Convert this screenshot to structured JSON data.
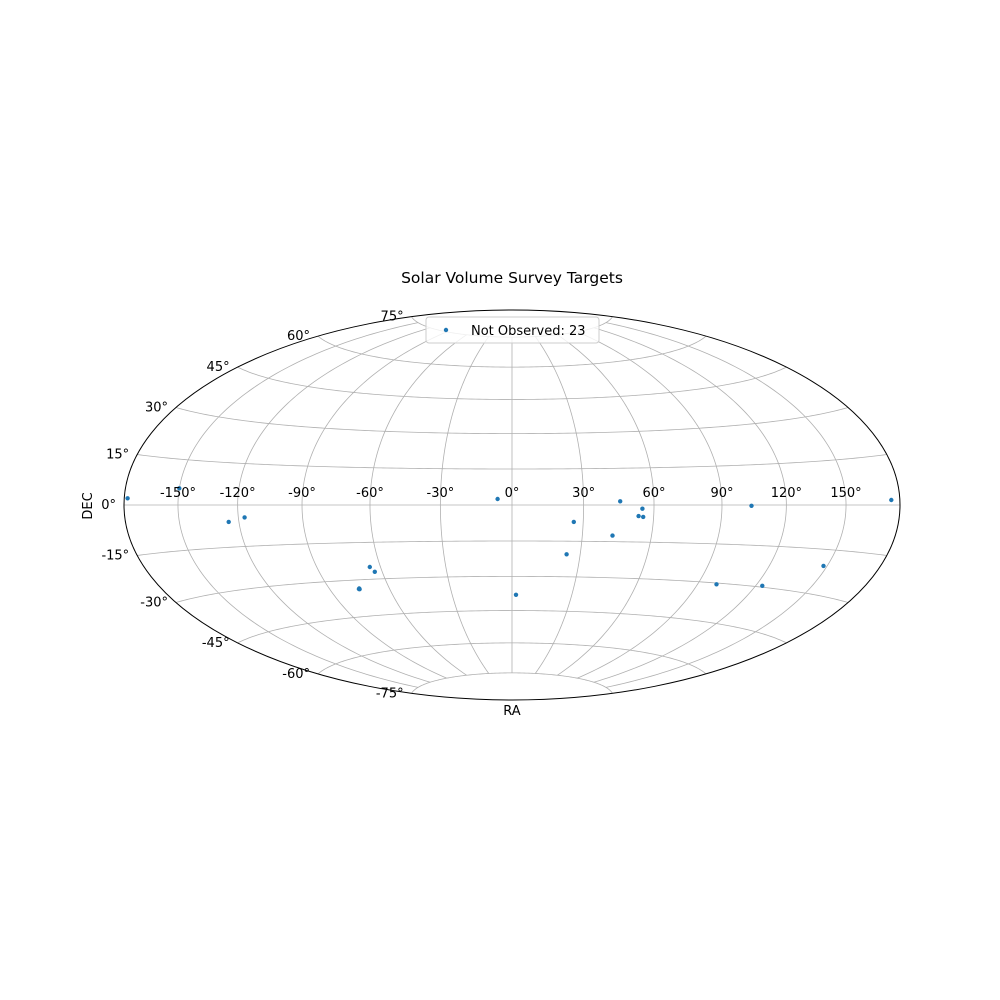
{
  "chart_data": {
    "type": "scatter",
    "projection": "hammer",
    "title": "Solar Volume Survey Targets",
    "xlabel": "RA",
    "ylabel": "DEC",
    "grid": true,
    "legend_placement": "top-center",
    "marker_color": "#1f77b4",
    "ra_ticks": [
      -150,
      -120,
      -90,
      -60,
      -30,
      0,
      30,
      60,
      90,
      120,
      150
    ],
    "ra_tick_labels": [
      "-150°",
      "-120°",
      "-90°",
      "-60°",
      "-30°",
      "0°",
      "30°",
      "60°",
      "90°",
      "120°",
      "150°"
    ],
    "dec_ticks": [
      -75,
      -60,
      -45,
      -30,
      -15,
      0,
      15,
      30,
      45,
      60,
      75
    ],
    "dec_tick_labels": [
      "-75°",
      "-60°",
      "-45°",
      "-30°",
      "-15°",
      "0°",
      "15°",
      "30°",
      "45°",
      "60°",
      "75°"
    ],
    "series": [
      {
        "name": "Not Observed: 23",
        "points": [
          {
            "ra": -178.0,
            "dec": 2.0
          },
          {
            "ra": -150.0,
            "dec": 5.5
          },
          {
            "ra": -125.0,
            "dec": -6.0
          },
          {
            "ra": -117.0,
            "dec": -4.5
          },
          {
            "ra": -6.0,
            "dec": 2.5
          },
          {
            "ra": 26.0,
            "dec": -7.0
          },
          {
            "ra": 45.5,
            "dec": 1.5
          },
          {
            "ra": 53.5,
            "dec": -4.5
          },
          {
            "ra": 55.0,
            "dec": -1.5
          },
          {
            "ra": 55.5,
            "dec": -4.8
          },
          {
            "ra": 43.0,
            "dec": -12.5
          },
          {
            "ra": 103.5,
            "dec": -0.3
          },
          {
            "ra": 175.0,
            "dec": 1.5
          },
          {
            "ra": 24.0,
            "dec": -20.5
          },
          {
            "ra": 148.0,
            "dec": -20.5
          },
          {
            "ra": 99.5,
            "dec": -30.5
          },
          {
            "ra": 123.5,
            "dec": -29.5
          },
          {
            "ra": -65.0,
            "dec": -25.0
          },
          {
            "ra": -63.5,
            "dec": -27.0
          },
          {
            "ra": -75.0,
            "dec": -33.5
          },
          {
            "ra": -75.0,
            "dec": -33.8
          },
          {
            "ra": 2.0,
            "dec": -38.0
          },
          {
            "ra": -75.3,
            "dec": -33.7
          }
        ]
      }
    ]
  }
}
